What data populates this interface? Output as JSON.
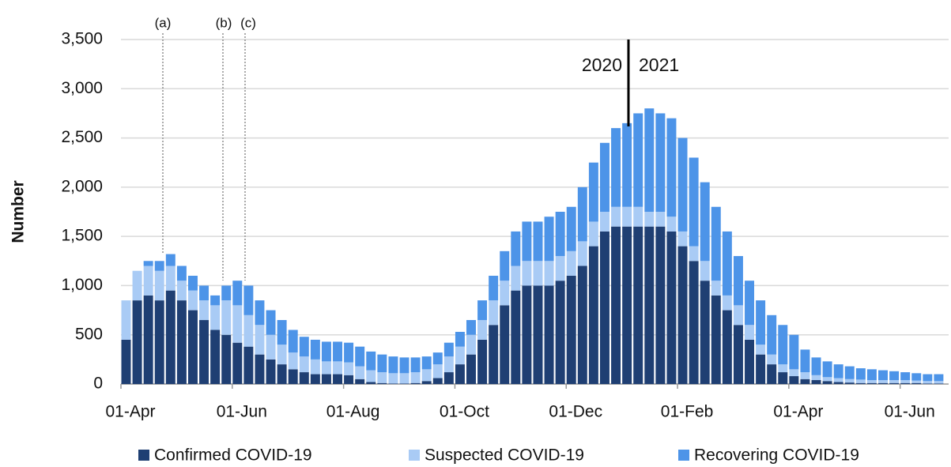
{
  "chart_data": {
    "type": "stacked_bar",
    "y_label": "Number",
    "categories": [
      "01-Apr",
      null,
      null,
      null,
      null,
      null,
      null,
      null,
      null,
      null,
      "01-Jun",
      null,
      null,
      null,
      null,
      null,
      null,
      null,
      null,
      null,
      "01-Aug",
      null,
      null,
      null,
      null,
      null,
      null,
      null,
      null,
      null,
      "01-Oct",
      null,
      null,
      null,
      null,
      null,
      null,
      null,
      null,
      null,
      "01-Dec",
      null,
      null,
      null,
      null,
      null,
      null,
      null,
      null,
      null,
      "01-Feb",
      null,
      null,
      null,
      null,
      null,
      null,
      null,
      null,
      null,
      "01-Apr",
      null,
      null,
      null,
      null,
      null,
      null,
      null,
      null,
      null,
      "01-Jun",
      null,
      null,
      null
    ],
    "series": [
      {
        "name": "Confirmed COVID-19",
        "color": "#1f3f73",
        "values": [
          450,
          850,
          900,
          850,
          950,
          850,
          750,
          650,
          550,
          500,
          420,
          380,
          300,
          250,
          200,
          150,
          120,
          100,
          100,
          100,
          90,
          50,
          20,
          10,
          5,
          5,
          10,
          30,
          60,
          120,
          200,
          300,
          450,
          600,
          800,
          950,
          1000,
          1000,
          1000,
          1050,
          1100,
          1200,
          1400,
          1550,
          1600,
          1600,
          1600,
          1600,
          1600,
          1550,
          1400,
          1250,
          1050,
          900,
          750,
          600,
          450,
          300,
          200,
          120,
          80,
          50,
          40,
          30,
          20,
          15,
          10,
          10,
          10,
          10,
          10,
          10,
          5,
          5
        ]
      },
      {
        "name": "Suspected COVID-19",
        "color": "#a9cbf5",
        "values": [
          400,
          300,
          300,
          300,
          250,
          200,
          200,
          200,
          250,
          350,
          380,
          320,
          300,
          250,
          200,
          170,
          160,
          150,
          130,
          130,
          130,
          130,
          120,
          110,
          105,
          105,
          110,
          120,
          140,
          160,
          180,
          200,
          200,
          250,
          250,
          250,
          250,
          250,
          250,
          250,
          250,
          250,
          250,
          200,
          200,
          200,
          200,
          150,
          150,
          150,
          150,
          150,
          200,
          150,
          150,
          200,
          150,
          100,
          100,
          80,
          70,
          70,
          50,
          40,
          40,
          35,
          35,
          30,
          30,
          30,
          30,
          25,
          25,
          25
        ]
      },
      {
        "name": "Recovering COVID-19",
        "color": "#4d94e8",
        "values": [
          0,
          0,
          50,
          100,
          120,
          150,
          150,
          150,
          100,
          150,
          250,
          300,
          250,
          250,
          250,
          230,
          200,
          200,
          200,
          200,
          200,
          200,
          190,
          180,
          170,
          160,
          150,
          130,
          120,
          140,
          150,
          150,
          200,
          250,
          300,
          350,
          400,
          400,
          450,
          450,
          450,
          550,
          600,
          700,
          800,
          850,
          950,
          1050,
          1000,
          1000,
          950,
          900,
          800,
          750,
          650,
          500,
          450,
          450,
          400,
          400,
          350,
          230,
          180,
          160,
          140,
          130,
          115,
          110,
          100,
          90,
          80,
          75,
          70,
          70
        ]
      }
    ],
    "ylim": [
      0,
      3500
    ],
    "yticks": [
      0,
      500,
      {
        "value": 1000,
        "label": "1,000"
      },
      {
        "value": 1500,
        "label": "1,500"
      },
      {
        "value": 2000,
        "label": "2,000"
      },
      {
        "value": 2500,
        "label": "2,500"
      },
      {
        "value": 3000,
        "label": "3,000"
      },
      {
        "value": 3500,
        "label": "3,500"
      }
    ],
    "grid": true,
    "annotations": [
      "(a)",
      "(b)",
      "(c)"
    ],
    "year_labels": [
      "2020",
      "2021"
    ],
    "legend": "bottom"
  }
}
